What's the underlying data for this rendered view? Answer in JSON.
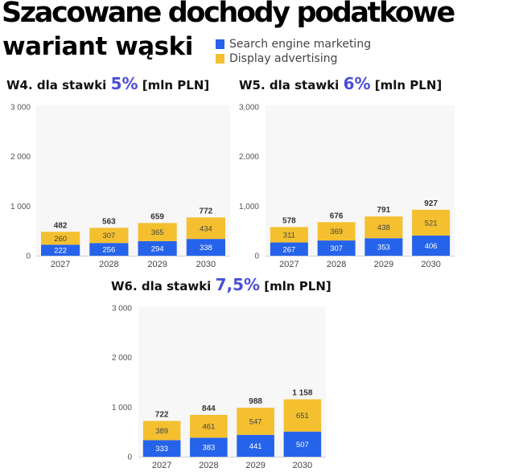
{
  "header": {
    "title": "Szacowane dochody podatkowe",
    "subtitle": "wariant wąski"
  },
  "legend": [
    {
      "label": "Search engine marketing",
      "color": "#2563eb"
    },
    {
      "label": "Display advertising",
      "color": "#f4c030"
    }
  ],
  "colors": {
    "segment_label_search": "#ffffff",
    "segment_label_display": "#444444",
    "rate_accent": "#4a4fd6"
  },
  "chart_data": [
    {
      "type": "bar",
      "stacked": true,
      "title_prefix": "W4. dla stawki",
      "title_rate": "5%",
      "title_suffix": "[mln PLN]",
      "categories": [
        "2027",
        "2028",
        "2029",
        "2030"
      ],
      "series": [
        {
          "name": "Search engine marketing",
          "values": [
            222,
            256,
            294,
            338
          ]
        },
        {
          "name": "Display advertising",
          "values": [
            260,
            307,
            365,
            434
          ]
        }
      ],
      "totals": [
        482,
        563,
        659,
        772
      ],
      "yticks": [
        "0",
        "1 000",
        "2 000",
        "3 000"
      ],
      "ylim": [
        0,
        3000
      ],
      "grid": false
    },
    {
      "type": "bar",
      "stacked": true,
      "title_prefix": "W5. dla stawki",
      "title_rate": "6%",
      "title_suffix": "[mln PLN]",
      "categories": [
        "2027",
        "2028",
        "2029",
        "2030"
      ],
      "series": [
        {
          "name": "Search engine marketing",
          "values": [
            267,
            307,
            353,
            406
          ]
        },
        {
          "name": "Display advertising",
          "values": [
            311,
            369,
            438,
            521
          ]
        }
      ],
      "totals": [
        578,
        676,
        791,
        927
      ],
      "yticks": [
        "0",
        "1,000",
        "2,000",
        "3,000"
      ],
      "ylim": [
        0,
        3000
      ],
      "grid": false
    },
    {
      "type": "bar",
      "stacked": true,
      "title_prefix": "W6. dla stawki",
      "title_rate": "7,5%",
      "title_suffix": "[mln PLN]",
      "categories": [
        "2027",
        "2028",
        "2029",
        "2030"
      ],
      "series": [
        {
          "name": "Search engine marketing",
          "values": [
            333,
            383,
            441,
            507
          ]
        },
        {
          "name": "Display advertising",
          "values": [
            389,
            461,
            547,
            651
          ]
        }
      ],
      "totals": [
        "722",
        "844",
        "988",
        "1 158"
      ],
      "yticks": [
        "0",
        "1 000",
        "2 000",
        "3 000"
      ],
      "ylim": [
        0,
        3000
      ],
      "grid": false
    }
  ]
}
